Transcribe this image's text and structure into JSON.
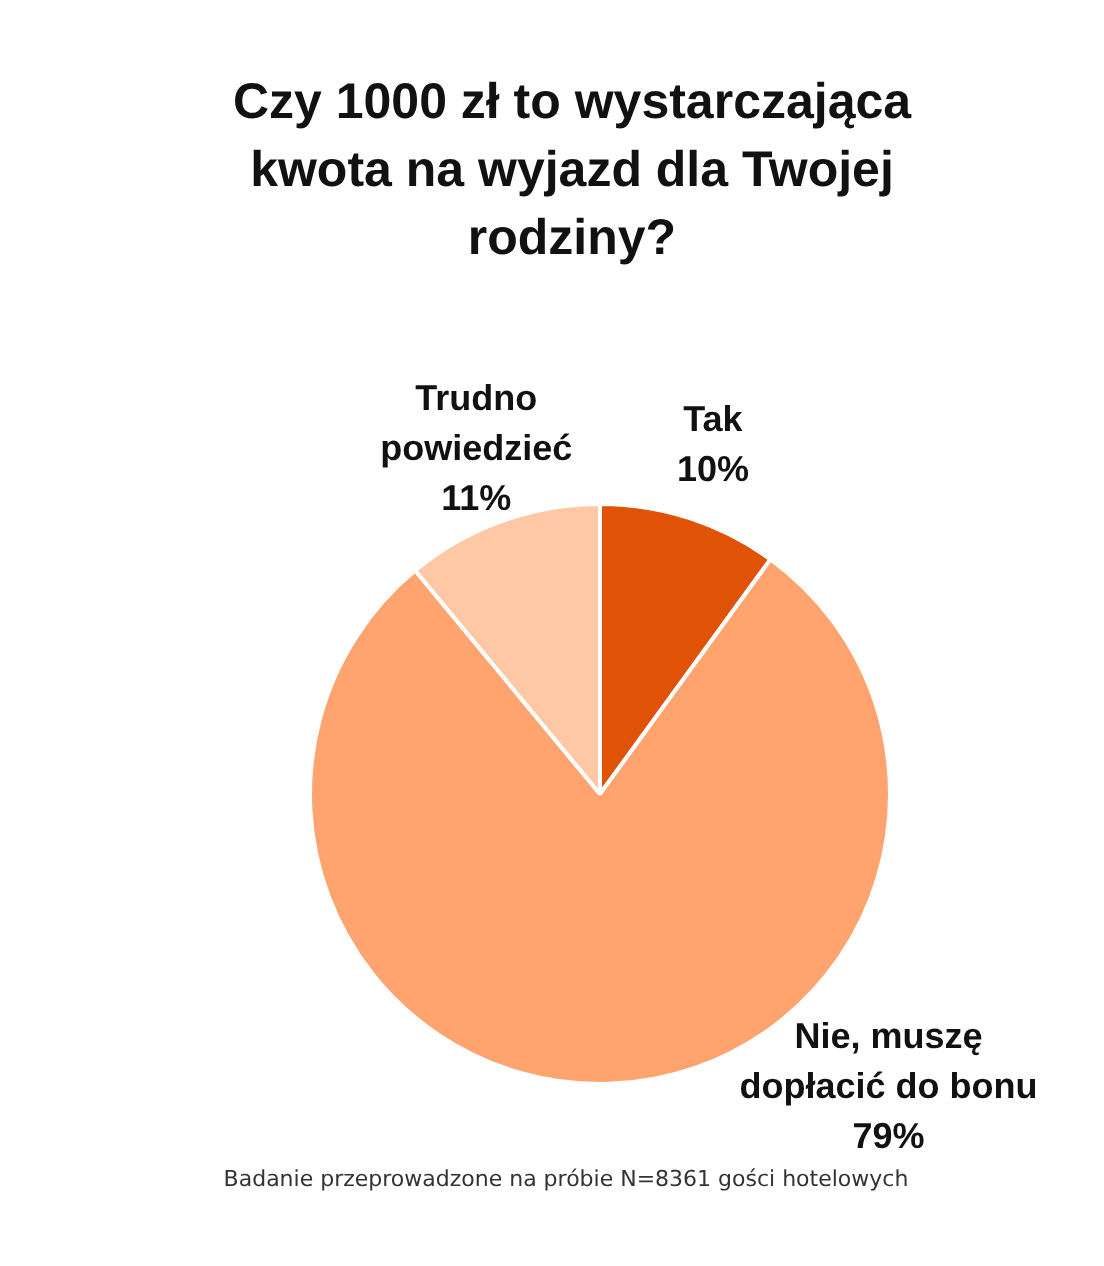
{
  "chart_data": {
    "type": "pie",
    "title": "Czy 1000 zł to wystarczająca kwota na wyjazd dla Twojej rodziny?",
    "categories": [
      "Tak",
      "Nie, muszę dopłacić do bonu",
      "Trudno powiedzieć"
    ],
    "values": [
      10,
      79,
      11
    ],
    "colors": [
      "#e05206",
      "#ffa46f",
      "#fec8a5"
    ],
    "value_labels": [
      "10%",
      "79%",
      "11%"
    ],
    "annotations": [
      "Badanie przeprowadzone na próbie N=8361 gości hotelowych"
    ]
  }
}
